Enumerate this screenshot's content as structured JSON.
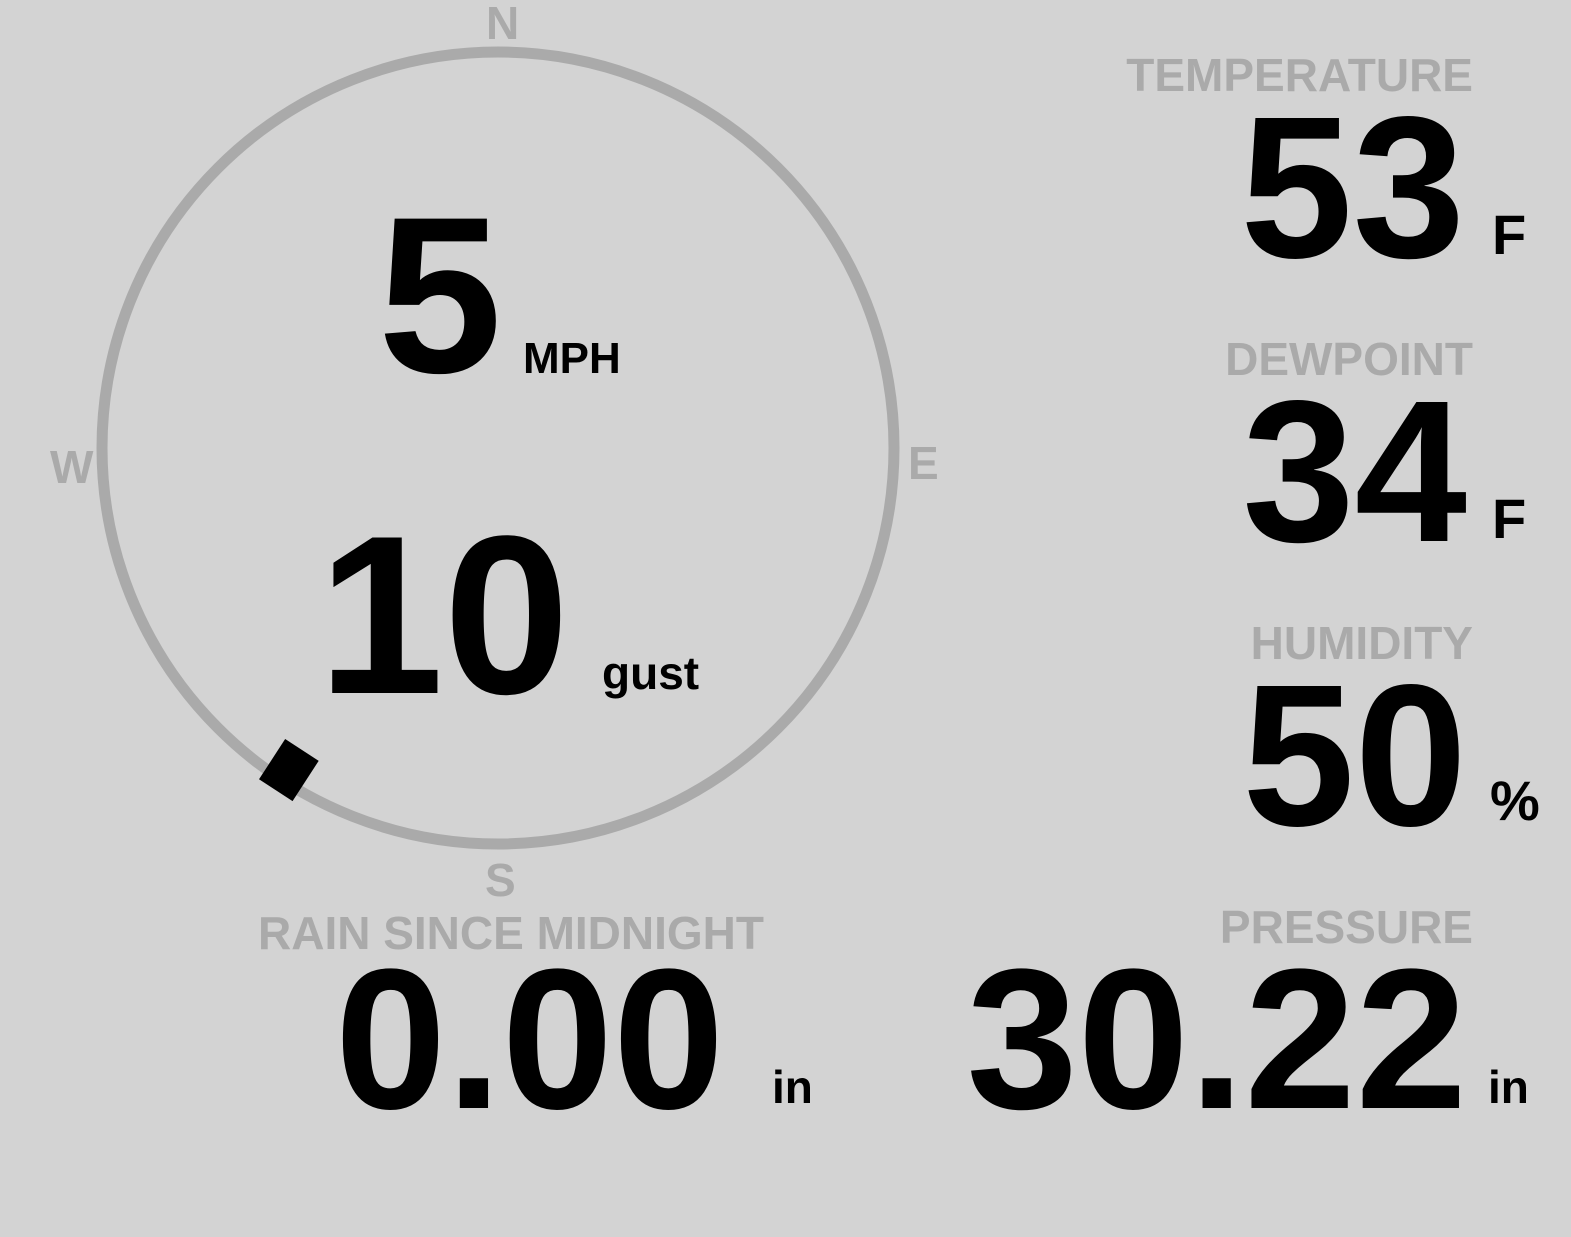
{
  "wind": {
    "speed": "5",
    "speed_unit": "MPH",
    "gust": "10",
    "gust_unit": "gust",
    "direction_degrees": 213,
    "compass": {
      "n": "N",
      "e": "E",
      "s": "S",
      "w": "W"
    }
  },
  "rain": {
    "label": "RAIN SINCE MIDNIGHT",
    "value": "0.00",
    "unit": "in"
  },
  "temperature": {
    "label": "TEMPERATURE",
    "value": "53",
    "unit": "F"
  },
  "dewpoint": {
    "label": "DEWPOINT",
    "value": "34",
    "unit": "F"
  },
  "humidity": {
    "label": "HUMIDITY",
    "value": "50",
    "unit": "%"
  },
  "pressure": {
    "label": "PRESSURE",
    "value": "30.22",
    "unit": "in"
  },
  "colors": {
    "background": "#d3d3d3",
    "label": "#aaaaaa",
    "value": "#000000",
    "dial": "#aaaaaa"
  }
}
